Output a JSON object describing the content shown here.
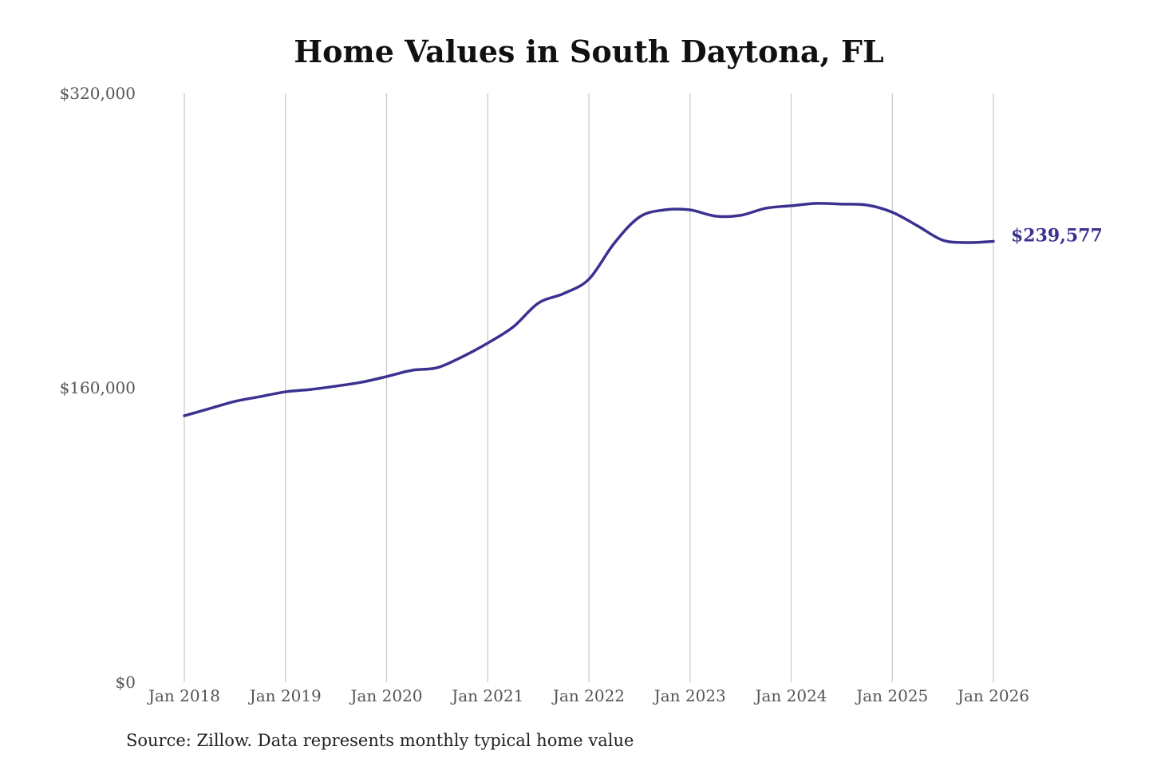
{
  "chart_data": {
    "type": "line",
    "title": "Home Values in South Daytona, FL",
    "source": "Source: Zillow. Data represents monthly typical home value",
    "xlabel": "",
    "ylabel": "",
    "ylim": [
      0,
      320000
    ],
    "yticks": [
      0,
      160000,
      320000
    ],
    "ytick_labels": [
      "$0",
      "$160,000",
      "$320,000"
    ],
    "xticks": [
      "2018-01",
      "2019-01",
      "2020-01",
      "2021-01",
      "2022-01",
      "2023-01",
      "2024-01",
      "2025-01",
      "2026-01"
    ],
    "xtick_labels": [
      "Jan 2018",
      "Jan 2019",
      "Jan 2020",
      "Jan 2021",
      "Jan 2022",
      "Jan 2023",
      "Jan 2024",
      "Jan 2025",
      "Jan 2026"
    ],
    "grid": "vertical",
    "line_color": "#3a3190",
    "end_label": "$239,577",
    "series": [
      {
        "x": [
          "2018-01",
          "2018-04",
          "2018-07",
          "2018-10",
          "2019-01",
          "2019-04",
          "2019-07",
          "2019-10",
          "2020-01",
          "2020-04",
          "2020-07",
          "2020-10",
          "2021-01",
          "2021-04",
          "2021-07",
          "2021-10",
          "2022-01",
          "2022-04",
          "2022-07",
          "2022-10",
          "2023-01",
          "2023-04",
          "2023-07",
          "2023-10",
          "2024-01",
          "2024-04",
          "2024-07",
          "2024-10",
          "2025-01",
          "2025-04",
          "2025-07",
          "2025-10",
          "2026-01"
        ],
        "values": [
          144800,
          148700,
          152600,
          155200,
          157800,
          159100,
          160900,
          163000,
          166100,
          169500,
          170900,
          176900,
          184300,
          193000,
          206000,
          211200,
          219000,
          238500,
          252800,
          256700,
          256700,
          253300,
          253700,
          257600,
          258900,
          260200,
          259800,
          259300,
          255400,
          248000,
          240200,
          238900,
          239577
        ]
      }
    ]
  }
}
